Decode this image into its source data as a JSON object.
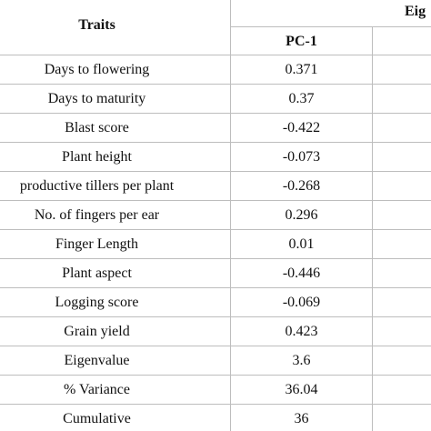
{
  "header": {
    "traits_label": "Traits",
    "group_label": "Eig",
    "pc1_label": "PC-1"
  },
  "rows": [
    {
      "trait": "Days to flowering",
      "pc1": "0.371"
    },
    {
      "trait": "Days to maturity",
      "pc1": "0.37"
    },
    {
      "trait": "Blast score",
      "pc1": "-0.422"
    },
    {
      "trait": "Plant height",
      "pc1": "-0.073"
    },
    {
      "trait": "productive tillers per plant",
      "pc1": "-0.268"
    },
    {
      "trait": "No. of fingers per ear",
      "pc1": "0.296"
    },
    {
      "trait": "Finger Length",
      "pc1": "0.01"
    },
    {
      "trait": "Plant aspect",
      "pc1": "-0.446"
    },
    {
      "trait": "Logging score",
      "pc1": "-0.069"
    },
    {
      "trait": "Grain yield",
      "pc1": "0.423"
    },
    {
      "trait": "Eigenvalue",
      "pc1": "3.6"
    },
    {
      "trait": "% Variance",
      "pc1": "36.04"
    },
    {
      "trait": "Cumulative",
      "pc1": "36"
    }
  ]
}
